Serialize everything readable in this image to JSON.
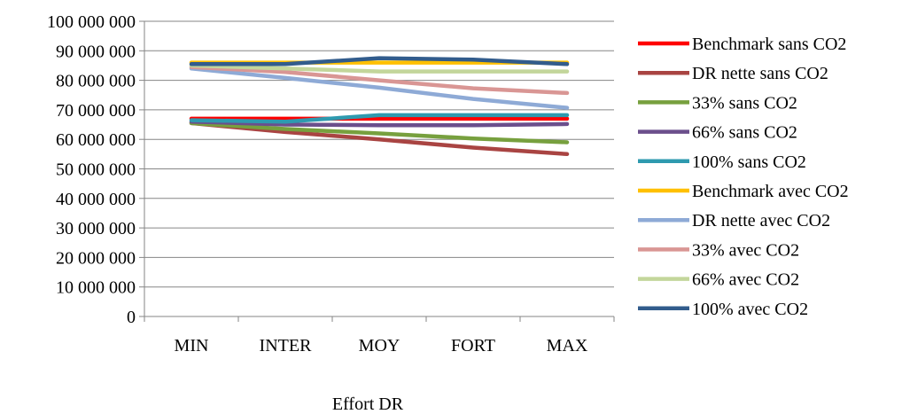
{
  "chart_data": {
    "type": "line",
    "categories": [
      "MIN",
      "INTER",
      "MOY",
      "FORT",
      "MAX"
    ],
    "xlabel": "Effort DR",
    "ylabel": "",
    "title": "",
    "ylim": [
      0,
      100000000
    ],
    "yticks": [
      0,
      10000000,
      20000000,
      30000000,
      40000000,
      50000000,
      60000000,
      70000000,
      80000000,
      90000000,
      100000000
    ],
    "ytick_labels": [
      "0",
      "10 000 000",
      "20 000 000",
      "30 000 000",
      "40 000 000",
      "50 000 000",
      "60 000 000",
      "70 000 000",
      "80 000 000",
      "90 000 000",
      "100 000 000"
    ],
    "grid": "horizontal",
    "legend_position": "right",
    "series": [
      {
        "name": "Benchmark sans CO2",
        "color": "#ff0000",
        "values": [
          67000000,
          67000000,
          67000000,
          67000000,
          67000000
        ]
      },
      {
        "name": "DR nette sans CO2",
        "color": "#a94442",
        "values": [
          65500000,
          62500000,
          60000000,
          57200000,
          55000000
        ]
      },
      {
        "name": "33% sans CO2",
        "color": "#77a03e",
        "values": [
          65500000,
          63500000,
          62000000,
          60300000,
          59000000
        ]
      },
      {
        "name": "66% sans CO2",
        "color": "#6b4f8c",
        "values": [
          66000000,
          65000000,
          64800000,
          64800000,
          65200000
        ]
      },
      {
        "name": "100% sans CO2",
        "color": "#2e9aaf",
        "values": [
          66500000,
          66000000,
          68200000,
          68200000,
          68200000
        ]
      },
      {
        "name": "Benchmark avec CO2",
        "color": "#ffc000",
        "values": [
          86000000,
          86000000,
          86000000,
          86000000,
          86000000
        ]
      },
      {
        "name": "DR nette avec CO2",
        "color": "#8eaad6",
        "values": [
          84000000,
          80800000,
          77500000,
          73700000,
          70700000
        ]
      },
      {
        "name": "33% avec CO2",
        "color": "#d99694",
        "values": [
          84500000,
          82800000,
          80000000,
          77300000,
          75700000
        ]
      },
      {
        "name": "66% avec CO2",
        "color": "#c3d69b",
        "values": [
          85000000,
          84000000,
          83000000,
          83000000,
          83000000
        ]
      },
      {
        "name": "100% avec CO2",
        "color": "#325c8c",
        "values": [
          85500000,
          85500000,
          87500000,
          87000000,
          85500000
        ]
      }
    ]
  }
}
